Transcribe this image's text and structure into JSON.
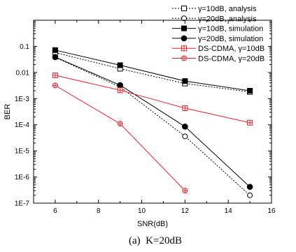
{
  "chart_data": {
    "type": "line",
    "title": "",
    "caption": "(a)  K=20dB",
    "xlabel": "SNR(dB)",
    "ylabel": "BER",
    "xlim": [
      5,
      16
    ],
    "ylim": [
      1e-07,
      1
    ],
    "y_scale": "log",
    "x_ticks": [
      6,
      8,
      10,
      12,
      14,
      16
    ],
    "y_ticks": [
      {
        "value": 0.1,
        "label": "0.1"
      },
      {
        "value": 0.01,
        "label": "0.01"
      },
      {
        "value": 0.001,
        "label": "1E-3"
      },
      {
        "value": 0.0001,
        "label": "1E-4"
      },
      {
        "value": 1e-05,
        "label": "1E-5"
      },
      {
        "value": 1e-06,
        "label": "1E-6"
      },
      {
        "value": 1e-07,
        "label": "1E-7"
      }
    ],
    "grid": false,
    "legend_position": "top-right",
    "series": [
      {
        "name": "γ=10dB, analysis",
        "color": "#000000",
        "dash": "dotted",
        "marker": "square-open",
        "x": [
          6,
          9,
          12,
          15
        ],
        "y": [
          0.058,
          0.014,
          0.0038,
          0.0018
        ]
      },
      {
        "name": "γ=20dB, analysis",
        "color": "#000000",
        "dash": "dotted",
        "marker": "circle-open",
        "x": [
          6,
          9,
          12,
          15
        ],
        "y": [
          0.038,
          0.0028,
          3.6e-05,
          2e-07
        ]
      },
      {
        "name": "γ=10dB, simulation",
        "color": "#000000",
        "dash": "solid",
        "marker": "square-filled",
        "x": [
          6,
          9,
          12,
          15
        ],
        "y": [
          0.072,
          0.019,
          0.0047,
          0.002
        ]
      },
      {
        "name": "γ=20dB, simulation",
        "color": "#000000",
        "dash": "solid",
        "marker": "circle-filled",
        "x": [
          6,
          9,
          12,
          15
        ],
        "y": [
          0.039,
          0.0033,
          8.5e-05,
          4.2e-07
        ]
      },
      {
        "name": "DS-CDMA, γ=10dB",
        "color": "#e8202a",
        "dash": "solid",
        "marker": "square-plus",
        "x": [
          6,
          9,
          12,
          15
        ],
        "y": [
          0.0078,
          0.0021,
          0.00043,
          0.00012
        ]
      },
      {
        "name": "DS-CDMA, γ=20dB",
        "color": "#e8202a",
        "dash": "solid",
        "marker": "circle-plus",
        "x": [
          6,
          9,
          12
        ],
        "y": [
          0.0032,
          0.00011,
          3e-07
        ]
      }
    ]
  }
}
